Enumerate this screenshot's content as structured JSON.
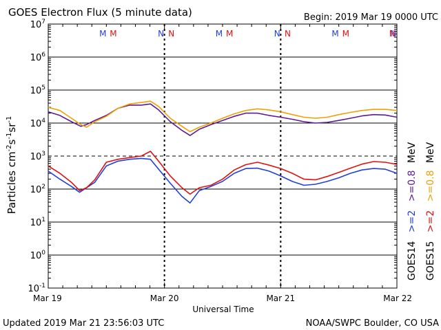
{
  "header": {
    "title": "GOES Electron Flux (5 minute data)",
    "begin": "Begin: 2019 Mar 19 0000 UTC"
  },
  "footer": {
    "updated": "Updated 2019 Mar 21 23:56:03 UTC",
    "source": "NOAA/SWPC Boulder, CO USA"
  },
  "colors": {
    "goes14_08": "#5a189a",
    "goes15_08": "#f0a000",
    "goes14_2": "#1f3fd8",
    "goes15_2": "#e01010",
    "m_blue": "#1f3fd8",
    "m_red": "#e01010"
  },
  "chart_data": {
    "type": "line",
    "xlabel": "Universal Time",
    "ylabel_parts": {
      "base": "Particles cm",
      "e1": "-2",
      "mid": "s",
      "e2": "-1",
      "mid2": "sr",
      "e3": "-1"
    },
    "x_ticks": [
      "Mar 19",
      "Mar 20",
      "Mar 21",
      "Mar 22"
    ],
    "x_range_days": [
      0,
      3
    ],
    "y_log": true,
    "y_exponents": [
      "7",
      "6",
      "5",
      "4",
      "3",
      "2",
      "1",
      "0",
      "-1"
    ],
    "y_range": [
      0.1,
      10000000
    ],
    "threshold": 1000,
    "markers": [
      {
        "day": 0.47,
        "label": "M",
        "color": "m_blue"
      },
      {
        "day": 0.56,
        "label": "M",
        "color": "m_red"
      },
      {
        "day": 0.97,
        "label": "N",
        "color": "m_blue"
      },
      {
        "day": 1.06,
        "label": "N",
        "color": "m_red"
      },
      {
        "day": 1.47,
        "label": "M",
        "color": "m_blue"
      },
      {
        "day": 1.56,
        "label": "M",
        "color": "m_red"
      },
      {
        "day": 1.97,
        "label": "N",
        "color": "m_blue"
      },
      {
        "day": 2.06,
        "label": "N",
        "color": "m_red"
      },
      {
        "day": 2.47,
        "label": "M",
        "color": "m_blue"
      },
      {
        "day": 2.56,
        "label": "M",
        "color": "m_red"
      },
      {
        "day": 2.97,
        "label": "N",
        "color": "m_blue"
      },
      {
        "day": 3.06,
        "label": "N",
        "color": "m_red"
      }
    ],
    "legend": {
      "goes14": "GOES14",
      "goes15": "GOES15",
      "g14_2": ">=2",
      "g15_2": ">=2",
      "g14_08": ">=0.8",
      "g15_08": ">=0.8",
      "unit": "MeV"
    },
    "series": [
      {
        "name": "GOES14 >=0.8 MeV",
        "color": "goes14_08",
        "x": [
          0,
          0.1,
          0.2,
          0.28,
          0.33,
          0.4,
          0.5,
          0.6,
          0.7,
          0.8,
          0.88,
          0.95,
          1.05,
          1.15,
          1.22,
          1.3,
          1.4,
          1.5,
          1.6,
          1.7,
          1.8,
          1.9,
          2.0,
          2.1,
          2.2,
          2.3,
          2.4,
          2.5,
          2.6,
          2.7,
          2.8,
          2.9,
          3.0
        ],
        "y": [
          22000,
          17000,
          11000,
          8000,
          9000,
          12000,
          17000,
          28000,
          35000,
          35000,
          38000,
          25000,
          11000,
          6000,
          4200,
          6500,
          9000,
          12000,
          16000,
          20000,
          20000,
          17000,
          15000,
          13000,
          11000,
          10000,
          10500,
          12000,
          14000,
          16500,
          18000,
          17500,
          15000
        ]
      },
      {
        "name": "GOES15 >=0.8 MeV",
        "color": "goes15_08",
        "x": [
          0,
          0.1,
          0.2,
          0.28,
          0.33,
          0.4,
          0.5,
          0.6,
          0.7,
          0.8,
          0.88,
          0.95,
          1.05,
          1.15,
          1.22,
          1.3,
          1.4,
          1.5,
          1.6,
          1.7,
          1.8,
          1.9,
          2.0,
          2.1,
          2.2,
          2.3,
          2.4,
          2.5,
          2.6,
          2.7,
          2.8,
          2.9,
          3.0
        ],
        "y": [
          30000,
          24000,
          14000,
          9000,
          7500,
          11000,
          16000,
          28000,
          38000,
          42000,
          46000,
          32000,
          14000,
          8000,
          5500,
          7500,
          10000,
          14000,
          19000,
          24000,
          27000,
          25000,
          22000,
          18000,
          15000,
          14000,
          15000,
          18000,
          21000,
          24000,
          26000,
          26000,
          24000
        ]
      },
      {
        "name": "GOES14 >=2 MeV",
        "color": "goes14_2",
        "x": [
          0,
          0.1,
          0.2,
          0.27,
          0.33,
          0.4,
          0.5,
          0.6,
          0.7,
          0.8,
          0.88,
          0.95,
          1.05,
          1.15,
          1.22,
          1.3,
          1.4,
          1.5,
          1.6,
          1.7,
          1.8,
          1.9,
          2.0,
          2.1,
          2.2,
          2.3,
          2.4,
          2.5,
          2.6,
          2.7,
          2.8,
          2.9,
          3.0
        ],
        "y": [
          350,
          200,
          120,
          80,
          110,
          160,
          500,
          700,
          800,
          850,
          800,
          400,
          150,
          60,
          38,
          90,
          120,
          170,
          300,
          420,
          430,
          350,
          250,
          170,
          130,
          140,
          170,
          220,
          300,
          380,
          420,
          400,
          300
        ]
      },
      {
        "name": "GOES15 >=2 MeV",
        "color": "goes15_2",
        "x": [
          0,
          0.1,
          0.2,
          0.27,
          0.33,
          0.4,
          0.5,
          0.6,
          0.7,
          0.8,
          0.88,
          0.95,
          1.05,
          1.15,
          1.22,
          1.3,
          1.4,
          1.5,
          1.6,
          1.7,
          1.8,
          1.9,
          2.0,
          2.1,
          2.2,
          2.3,
          2.4,
          2.5,
          2.6,
          2.7,
          2.8,
          2.9,
          3.0
        ],
        "y": [
          500,
          300,
          160,
          90,
          110,
          190,
          650,
          800,
          900,
          1000,
          1400,
          700,
          250,
          110,
          70,
          110,
          130,
          200,
          380,
          550,
          650,
          530,
          420,
          300,
          200,
          190,
          240,
          320,
          430,
          570,
          680,
          650,
          560
        ]
      }
    ]
  }
}
